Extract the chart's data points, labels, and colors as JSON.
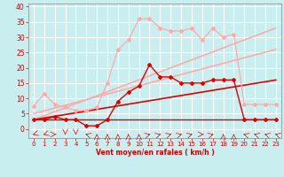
{
  "xlabel": "Vent moyen/en rafales ( km/h )",
  "xlim": [
    -0.5,
    23.5
  ],
  "ylim": [
    -3,
    41
  ],
  "yticks": [
    0,
    5,
    10,
    15,
    20,
    25,
    30,
    35,
    40
  ],
  "xticks": [
    0,
    1,
    2,
    3,
    4,
    5,
    6,
    7,
    8,
    9,
    10,
    11,
    12,
    13,
    14,
    15,
    16,
    17,
    18,
    19,
    20,
    21,
    22,
    23
  ],
  "bg_color": "#c8eef0",
  "grid_color": "#ffffff",
  "series": [
    {
      "color": "#ffaaaa",
      "linewidth": 0.9,
      "marker": "D",
      "markersize": 2.0,
      "data_x": [
        0,
        1,
        2,
        3,
        4,
        5,
        6,
        7,
        8,
        9,
        10,
        11,
        12,
        13,
        14,
        15,
        16,
        17,
        18,
        19,
        20,
        21,
        22,
        23
      ],
      "data_y": [
        7.5,
        11.5,
        8,
        7,
        6,
        6,
        7,
        15,
        26,
        29,
        36,
        36,
        33,
        32,
        32,
        33,
        29,
        33,
        30,
        31,
        8,
        8,
        8,
        8
      ]
    },
    {
      "color": "#ffaaaa",
      "linewidth": 1.2,
      "marker": null,
      "data_x": [
        0,
        23
      ],
      "data_y": [
        3,
        33
      ]
    },
    {
      "color": "#ffaaaa",
      "linewidth": 1.2,
      "marker": null,
      "data_x": [
        0,
        23
      ],
      "data_y": [
        5,
        26
      ]
    },
    {
      "color": "#dd0000",
      "linewidth": 1.0,
      "marker": "D",
      "markersize": 2.0,
      "data_x": [
        0,
        1,
        2,
        3,
        4,
        5,
        6,
        7,
        8,
        9,
        10,
        11,
        12,
        13,
        14,
        15,
        16,
        17,
        18,
        19,
        20,
        21,
        22,
        23
      ],
      "data_y": [
        3,
        3,
        4,
        3,
        3,
        1,
        1,
        3,
        9,
        12,
        14,
        21,
        17,
        17,
        15,
        15,
        15,
        16,
        16,
        16,
        3,
        3,
        3,
        3
      ]
    },
    {
      "color": "#dd0000",
      "linewidth": 1.2,
      "marker": null,
      "data_x": [
        0,
        23
      ],
      "data_y": [
        3,
        16
      ]
    },
    {
      "color": "#dd0000",
      "linewidth": 1.0,
      "marker": null,
      "data_x": [
        0,
        19,
        20,
        23
      ],
      "data_y": [
        3,
        3,
        3,
        3
      ]
    }
  ],
  "arrows": {
    "y": -1.8,
    "color": "#dd0000",
    "angles_deg": [
      225,
      225,
      90,
      180,
      180,
      315,
      0,
      0,
      0,
      0,
      0,
      45,
      45,
      45,
      45,
      45,
      90,
      45,
      0,
      0,
      315,
      315,
      315,
      315
    ]
  }
}
